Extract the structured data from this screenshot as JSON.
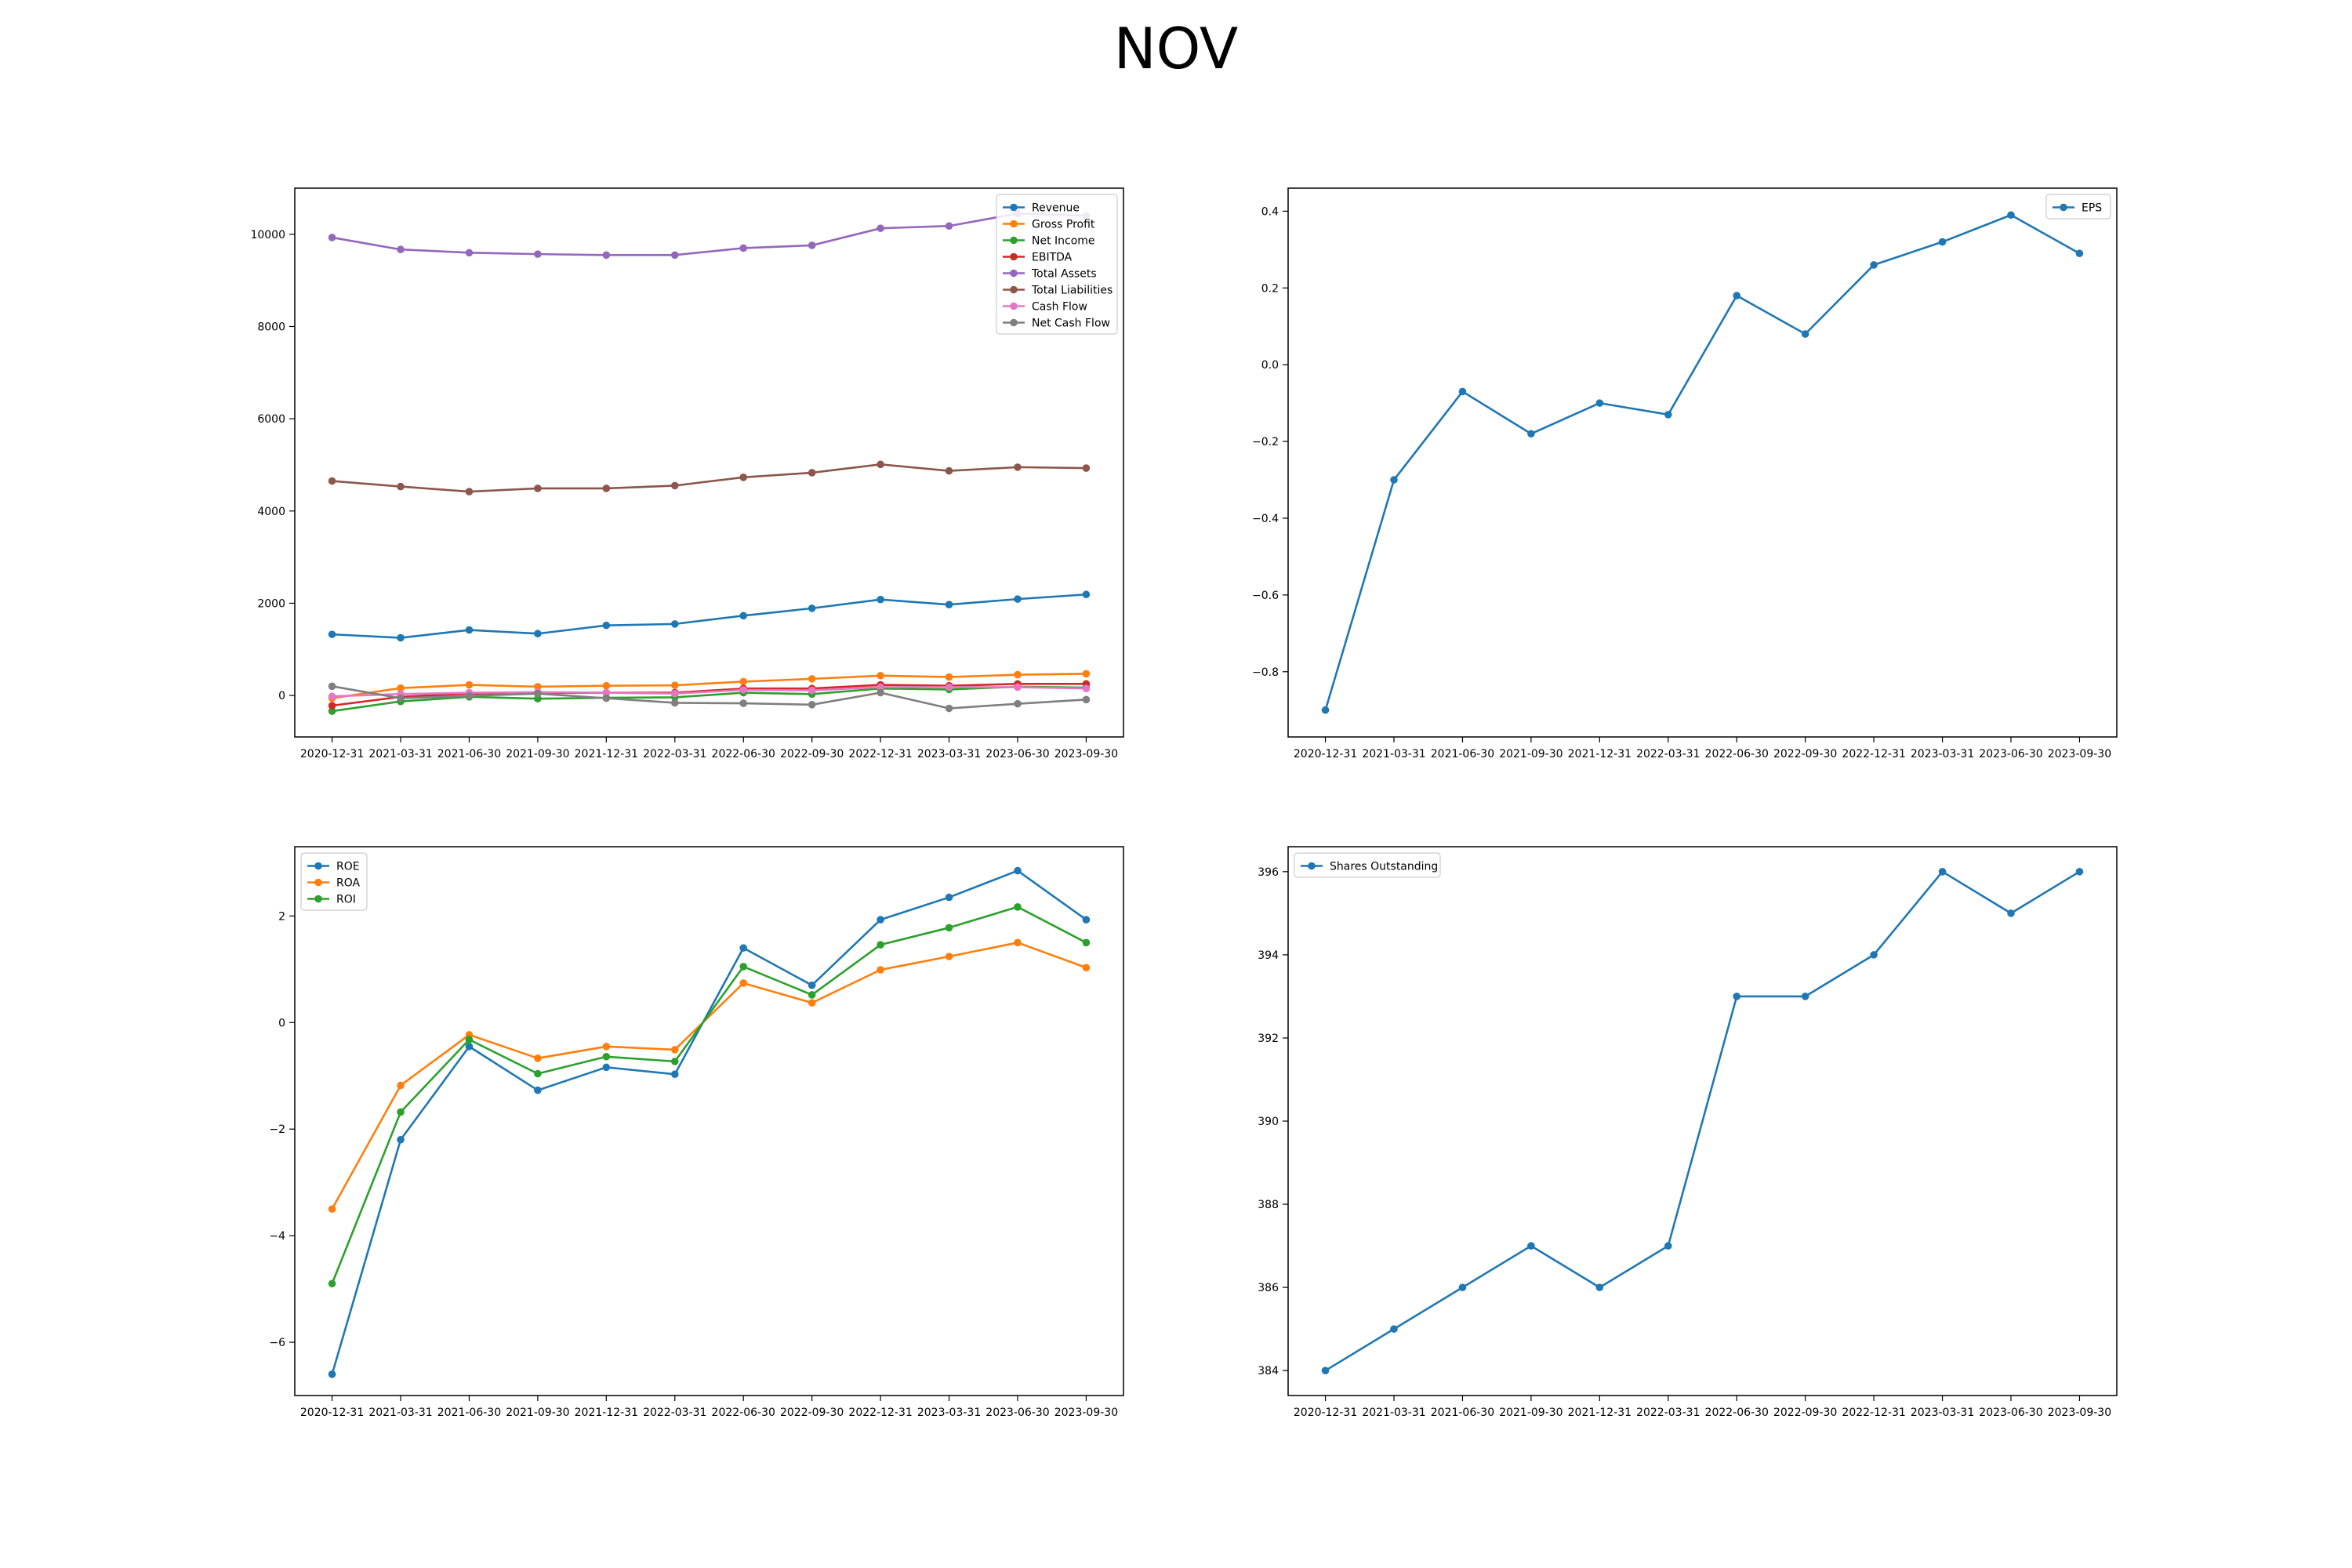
{
  "page": {
    "title": "NOV"
  },
  "colors": {
    "tab_blue": "#1f77b4",
    "tab_orange": "#ff7f0e",
    "tab_green": "#2ca02c",
    "tab_red": "#d62728",
    "tab_purple": "#9467bd",
    "tab_brown": "#8c564b",
    "tab_pink": "#e377c2",
    "tab_gray": "#7f7f7f"
  },
  "chart_data": [
    {
      "id": "financials",
      "type": "line",
      "title": "",
      "xlabel": "",
      "ylabel": "",
      "categories": [
        "2020-12-31",
        "2021-03-31",
        "2021-06-30",
        "2021-09-30",
        "2021-12-31",
        "2022-03-31",
        "2022-06-30",
        "2022-09-30",
        "2022-12-31",
        "2023-03-31",
        "2023-06-30",
        "2023-09-30"
      ],
      "ylim": [
        -900,
        11000
      ],
      "yticks": [
        0,
        2000,
        4000,
        6000,
        8000,
        10000
      ],
      "grid": false,
      "legend": "top-right",
      "series": [
        {
          "name": "Revenue",
          "color": "#1f77b4",
          "values": [
            1325,
            1250,
            1420,
            1340,
            1520,
            1550,
            1730,
            1890,
            2080,
            1970,
            2090,
            2190
          ]
        },
        {
          "name": "Gross Profit",
          "color": "#ff7f0e",
          "values": [
            -60,
            160,
            230,
            190,
            210,
            220,
            300,
            360,
            430,
            400,
            450,
            470
          ]
        },
        {
          "name": "Net Income",
          "color": "#2ca02c",
          "values": [
            -340,
            -130,
            -30,
            -70,
            -50,
            -40,
            60,
            30,
            150,
            130,
            190,
            170
          ]
        },
        {
          "name": "EBITDA",
          "color": "#d62728",
          "values": [
            -220,
            -30,
            40,
            50,
            60,
            60,
            150,
            150,
            230,
            210,
            250,
            250
          ]
        },
        {
          "name": "Total Assets",
          "color": "#9467bd",
          "values": [
            9930,
            9670,
            9600,
            9570,
            9550,
            9550,
            9700,
            9760,
            10130,
            10180,
            10450,
            10400
          ]
        },
        {
          "name": "Total Liabilities",
          "color": "#8c564b",
          "values": [
            4650,
            4530,
            4420,
            4490,
            4490,
            4550,
            4730,
            4830,
            5010,
            4870,
            4950,
            4930
          ]
        },
        {
          "name": "Cash Flow",
          "color": "#e377c2",
          "values": [
            -20,
            30,
            60,
            70,
            60,
            40,
            120,
            110,
            180,
            180,
            180,
            150
          ]
        },
        {
          "name": "Net Cash Flow",
          "color": "#7f7f7f",
          "values": [
            200,
            -60,
            -10,
            40,
            -60,
            -160,
            -170,
            -200,
            60,
            -280,
            -180,
            -90
          ]
        }
      ]
    },
    {
      "id": "eps",
      "type": "line",
      "title": "",
      "xlabel": "",
      "ylabel": "",
      "categories": [
        "2020-12-31",
        "2021-03-31",
        "2021-06-30",
        "2021-09-30",
        "2021-12-31",
        "2022-03-31",
        "2022-06-30",
        "2022-09-30",
        "2022-12-31",
        "2023-03-31",
        "2023-06-30",
        "2023-09-30"
      ],
      "ylim": [
        -0.97,
        0.46
      ],
      "yticks": [
        -0.8,
        -0.6,
        -0.4,
        -0.2,
        0.0,
        0.2,
        0.4
      ],
      "ytick_labels": [
        "−0.8",
        "−0.6",
        "−0.4",
        "−0.2",
        "0.0",
        "0.2",
        "0.4"
      ],
      "grid": false,
      "legend": "top-right",
      "series": [
        {
          "name": "EPS",
          "color": "#1f77b4",
          "values": [
            -0.9,
            -0.3,
            -0.07,
            -0.18,
            -0.1,
            -0.13,
            0.18,
            0.08,
            0.26,
            0.32,
            0.39,
            0.29
          ]
        }
      ]
    },
    {
      "id": "returns",
      "type": "line",
      "title": "",
      "xlabel": "",
      "ylabel": "",
      "categories": [
        "2020-12-31",
        "2021-03-31",
        "2021-06-30",
        "2021-09-30",
        "2021-12-31",
        "2022-03-31",
        "2022-06-30",
        "2022-09-30",
        "2022-12-31",
        "2023-03-31",
        "2023-06-30",
        "2023-09-30"
      ],
      "ylim": [
        -7.0,
        3.3
      ],
      "yticks": [
        -6,
        -4,
        -2,
        0,
        2
      ],
      "ytick_labels": [
        "−6",
        "−4",
        "−2",
        "0",
        "2"
      ],
      "grid": false,
      "legend": "top-left",
      "series": [
        {
          "name": "ROE",
          "color": "#1f77b4",
          "values": [
            -6.6,
            -2.2,
            -0.45,
            -1.27,
            -0.84,
            -0.97,
            1.4,
            0.7,
            1.93,
            2.35,
            2.85,
            1.93
          ]
        },
        {
          "name": "ROA",
          "color": "#ff7f0e",
          "values": [
            -3.5,
            -1.18,
            -0.23,
            -0.67,
            -0.45,
            -0.51,
            0.74,
            0.37,
            0.99,
            1.24,
            1.5,
            1.03
          ]
        },
        {
          "name": "ROI",
          "color": "#2ca02c",
          "values": [
            -4.9,
            -1.68,
            -0.32,
            -0.96,
            -0.64,
            -0.73,
            1.05,
            0.52,
            1.46,
            1.78,
            2.17,
            1.5
          ]
        }
      ]
    },
    {
      "id": "shares",
      "type": "line",
      "title": "",
      "xlabel": "",
      "ylabel": "",
      "categories": [
        "2020-12-31",
        "2021-03-31",
        "2021-06-30",
        "2021-09-30",
        "2021-12-31",
        "2022-03-31",
        "2022-06-30",
        "2022-09-30",
        "2022-12-31",
        "2023-03-31",
        "2023-06-30",
        "2023-09-30"
      ],
      "ylim": [
        383.4,
        396.6
      ],
      "yticks": [
        384,
        386,
        388,
        390,
        392,
        394,
        396
      ],
      "grid": false,
      "legend": "top-left",
      "series": [
        {
          "name": "Shares Outstanding",
          "color": "#1f77b4",
          "values": [
            384,
            385,
            386,
            387,
            386,
            387,
            393,
            393,
            394,
            396,
            395,
            396
          ]
        }
      ]
    }
  ]
}
